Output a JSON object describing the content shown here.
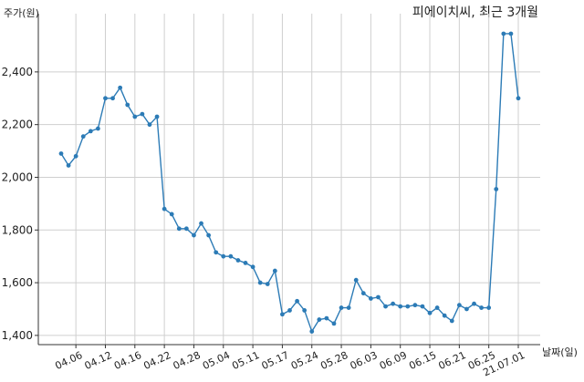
{
  "chart_data": {
    "type": "line",
    "title": "피에이치씨, 최근 3개월",
    "y_label": "주가(원)",
    "x_label": "날짜(일)",
    "categories": [
      null,
      null,
      "04.06",
      null,
      null,
      null,
      "04.12",
      null,
      null,
      null,
      "04.16",
      null,
      null,
      null,
      "04.22",
      null,
      null,
      null,
      "04.28",
      null,
      null,
      null,
      "05.04",
      null,
      null,
      null,
      "05.11",
      null,
      null,
      null,
      "05.17",
      null,
      null,
      null,
      "05.24",
      null,
      null,
      null,
      "05.28",
      null,
      null,
      null,
      "06.03",
      null,
      null,
      null,
      "06.09",
      null,
      null,
      null,
      "06.15",
      null,
      null,
      null,
      "06.21",
      null,
      null,
      null,
      "06.25",
      null,
      null,
      null,
      "21.07.01"
    ],
    "values": [
      2090,
      2045,
      2080,
      2155,
      2175,
      2185,
      2300,
      2300,
      2340,
      2275,
      2230,
      2240,
      2200,
      2230,
      1880,
      1860,
      1805,
      1805,
      1780,
      1825,
      1780,
      1715,
      1700,
      1700,
      1685,
      1675,
      1660,
      1600,
      1595,
      1645,
      1480,
      1495,
      1530,
      1495,
      1415,
      1460,
      1465,
      1445,
      1505,
      1505,
      1610,
      1560,
      1540,
      1545,
      1510,
      1520,
      1510,
      1510,
      1515,
      1510,
      1485,
      1505,
      1475,
      1455,
      1515,
      1500,
      1520,
      1505,
      1505,
      1955,
      2545,
      2545,
      2300
    ],
    "color": "#2c7bb6",
    "ylim": [
      1365,
      2621
    ],
    "yticks": [
      {
        "value": 1400,
        "label": "1,400"
      },
      {
        "value": 1600,
        "label": "1,600"
      },
      {
        "value": 1800,
        "label": "1,800"
      },
      {
        "value": 2000,
        "label": "2,000"
      },
      {
        "value": 2200,
        "label": "2,200"
      },
      {
        "value": 2400,
        "label": "2,400"
      }
    ],
    "grid": true
  }
}
